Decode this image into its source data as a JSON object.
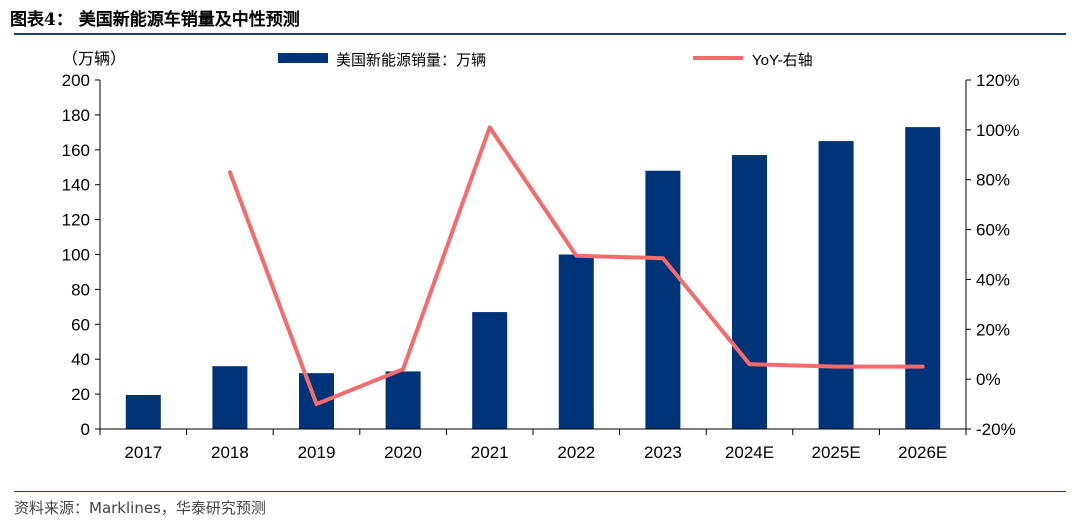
{
  "header": {
    "title": "图表4：  美国新能源车销量及中性预测"
  },
  "footer": {
    "source": "资料来源：Marklines，华泰研究预测"
  },
  "colors": {
    "bar": "#003479",
    "line": "#f46b6b",
    "rule": "#1f3c7a"
  },
  "chart_data": {
    "type": "bar+line",
    "categories": [
      "2017",
      "2018",
      "2019",
      "2020",
      "2021",
      "2022",
      "2023",
      "2024E",
      "2025E",
      "2026E"
    ],
    "left_axis": {
      "unit_label": "（万辆）",
      "ylim": [
        0,
        200
      ],
      "ticks": [
        "0",
        "20",
        "40",
        "60",
        "80",
        "100",
        "120",
        "140",
        "160",
        "180",
        "200"
      ]
    },
    "right_axis": {
      "ylim": [
        -20,
        120
      ],
      "ticks": [
        "-20%",
        "0%",
        "20%",
        "40%",
        "60%",
        "80%",
        "100%",
        "120%"
      ]
    },
    "series": [
      {
        "name": "美国新能源销量：万辆",
        "type": "bar",
        "axis": "left",
        "values": [
          19.5,
          36,
          32,
          33,
          67,
          100,
          148,
          157,
          165,
          173
        ]
      },
      {
        "name": "YoY-右轴",
        "type": "line",
        "axis": "right",
        "values": [
          null,
          83,
          -10,
          4,
          101,
          49.5,
          48.5,
          6,
          5,
          5
        ]
      }
    ],
    "legend": "top",
    "grid": false
  }
}
